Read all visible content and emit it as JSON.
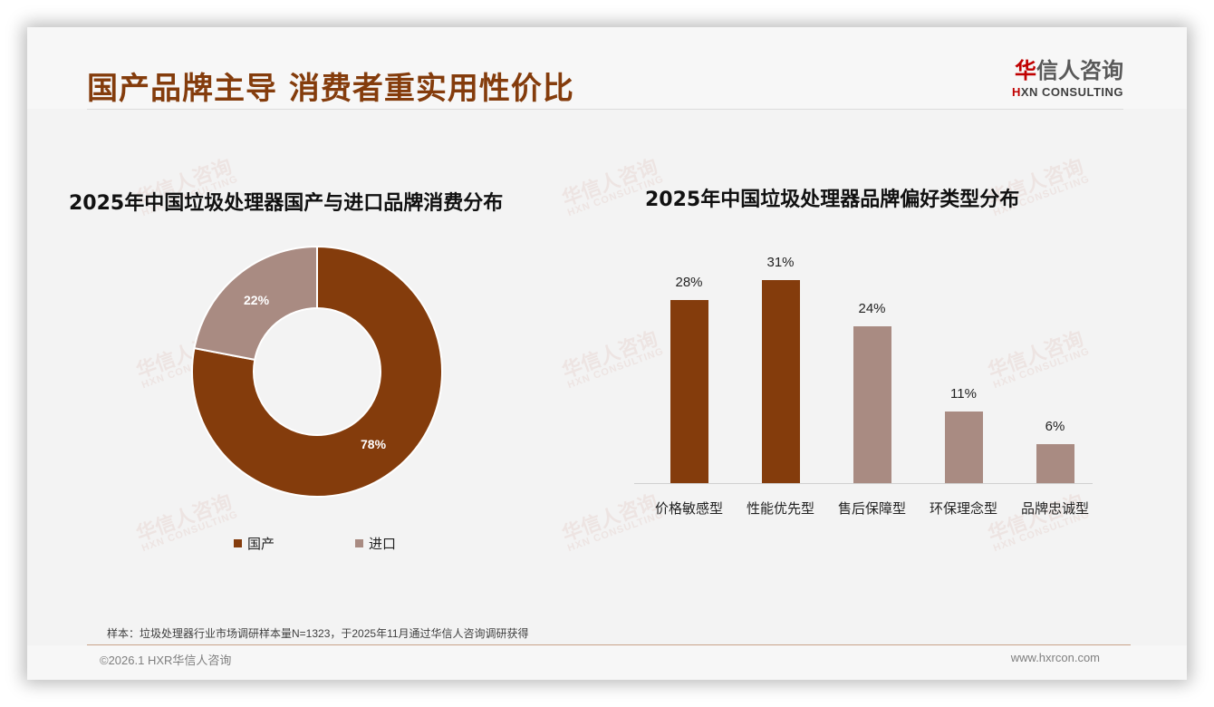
{
  "header": {
    "title": "国产品牌主导 消费者重实用性价比",
    "logo_cn_first": "华",
    "logo_cn_rest": "信人咨询",
    "logo_en_first": "H",
    "logo_en_rest": "XN CONSULTING"
  },
  "watermark": {
    "cn": "华信人咨询",
    "en": "HXN CONSULTING"
  },
  "donut": {
    "title": "2025年中国垃圾处理器国产与进口品牌消费分布",
    "slices": [
      {
        "label": "国产",
        "value": 78,
        "display": "78%",
        "color": "#843c0c"
      },
      {
        "label": "进口",
        "value": 22,
        "display": "22%",
        "color": "#a98b82"
      }
    ]
  },
  "bars": {
    "title": "2025年中国垃圾处理器品牌偏好类型分布",
    "items": [
      {
        "label": "价格敏感型",
        "value": 28,
        "display": "28%",
        "color": "#843c0c"
      },
      {
        "label": "性能优先型",
        "value": 31,
        "display": "31%",
        "color": "#843c0c"
      },
      {
        "label": "售后保障型",
        "value": 24,
        "display": "24%",
        "color": "#a98b82"
      },
      {
        "label": "环保理念型",
        "value": 11,
        "display": "11%",
        "color": "#a98b82"
      },
      {
        "label": "品牌忠诚型",
        "value": 6,
        "display": "6%",
        "color": "#a98b82"
      }
    ]
  },
  "footer": {
    "note": "样本：垃圾处理器行业市场调研样本量N=1323，于2025年11月通过华信人咨询调研获得",
    "copyright": "©2026.1 HXR华信人咨询",
    "website": "www.hxrcon.com"
  },
  "chart_data": [
    {
      "type": "pie",
      "title": "2025年中国垃圾处理器国产与进口品牌消费分布",
      "categories": [
        "国产",
        "进口"
      ],
      "values": [
        78,
        22
      ],
      "unit": "%",
      "donut": true,
      "legend_position": "bottom"
    },
    {
      "type": "bar",
      "title": "2025年中国垃圾处理器品牌偏好类型分布",
      "categories": [
        "价格敏感型",
        "性能优先型",
        "售后保障型",
        "环保理念型",
        "品牌忠诚型"
      ],
      "values": [
        28,
        31,
        24,
        11,
        6
      ],
      "unit": "%",
      "xlabel": "",
      "ylabel": "",
      "ylim": [
        0,
        35
      ],
      "grid": false,
      "data_labels": true
    }
  ]
}
